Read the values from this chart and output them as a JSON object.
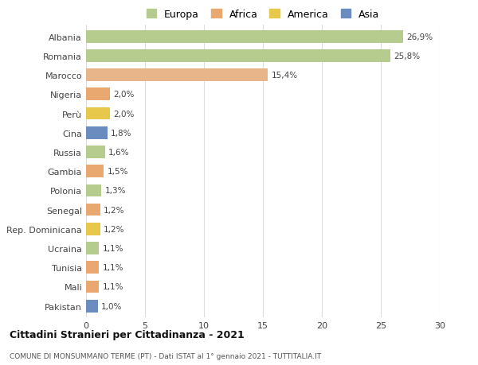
{
  "categories": [
    "Albania",
    "Romania",
    "Marocco",
    "Nigeria",
    "Perù",
    "Cina",
    "Russia",
    "Gambia",
    "Polonia",
    "Senegal",
    "Rep. Dominicana",
    "Ucraina",
    "Tunisia",
    "Mali",
    "Pakistan"
  ],
  "values": [
    26.9,
    25.8,
    15.4,
    2.0,
    2.0,
    1.8,
    1.6,
    1.5,
    1.3,
    1.2,
    1.2,
    1.1,
    1.1,
    1.1,
    1.0
  ],
  "labels": [
    "26,9%",
    "25,8%",
    "15,4%",
    "2,0%",
    "2,0%",
    "1,8%",
    "1,6%",
    "1,5%",
    "1,3%",
    "1,2%",
    "1,2%",
    "1,1%",
    "1,1%",
    "1,1%",
    "1,0%"
  ],
  "bar_colors": [
    "#b5cc8e",
    "#b5cc8e",
    "#e8b48a",
    "#e8a870",
    "#e8c84a",
    "#6b8cbf",
    "#b5cc8e",
    "#e8a870",
    "#b5cc8e",
    "#e8a870",
    "#e8c84a",
    "#b5cc8e",
    "#e8a870",
    "#e8a870",
    "#6b8cbf"
  ],
  "legend_labels": [
    "Europa",
    "Africa",
    "America",
    "Asia"
  ],
  "legend_colors": [
    "#b5cc8e",
    "#e8a870",
    "#e8c84a",
    "#6b8cbf"
  ],
  "title1": "Cittadini Stranieri per Cittadinanza - 2021",
  "title2": "COMUNE DI MONSUMMANO TERME (PT) - Dati ISTAT al 1° gennaio 2021 - TUTTITALIA.IT",
  "xlim": [
    0,
    30
  ],
  "xticks": [
    0,
    5,
    10,
    15,
    20,
    25,
    30
  ],
  "background_color": "#ffffff",
  "grid_color": "#dddddd"
}
